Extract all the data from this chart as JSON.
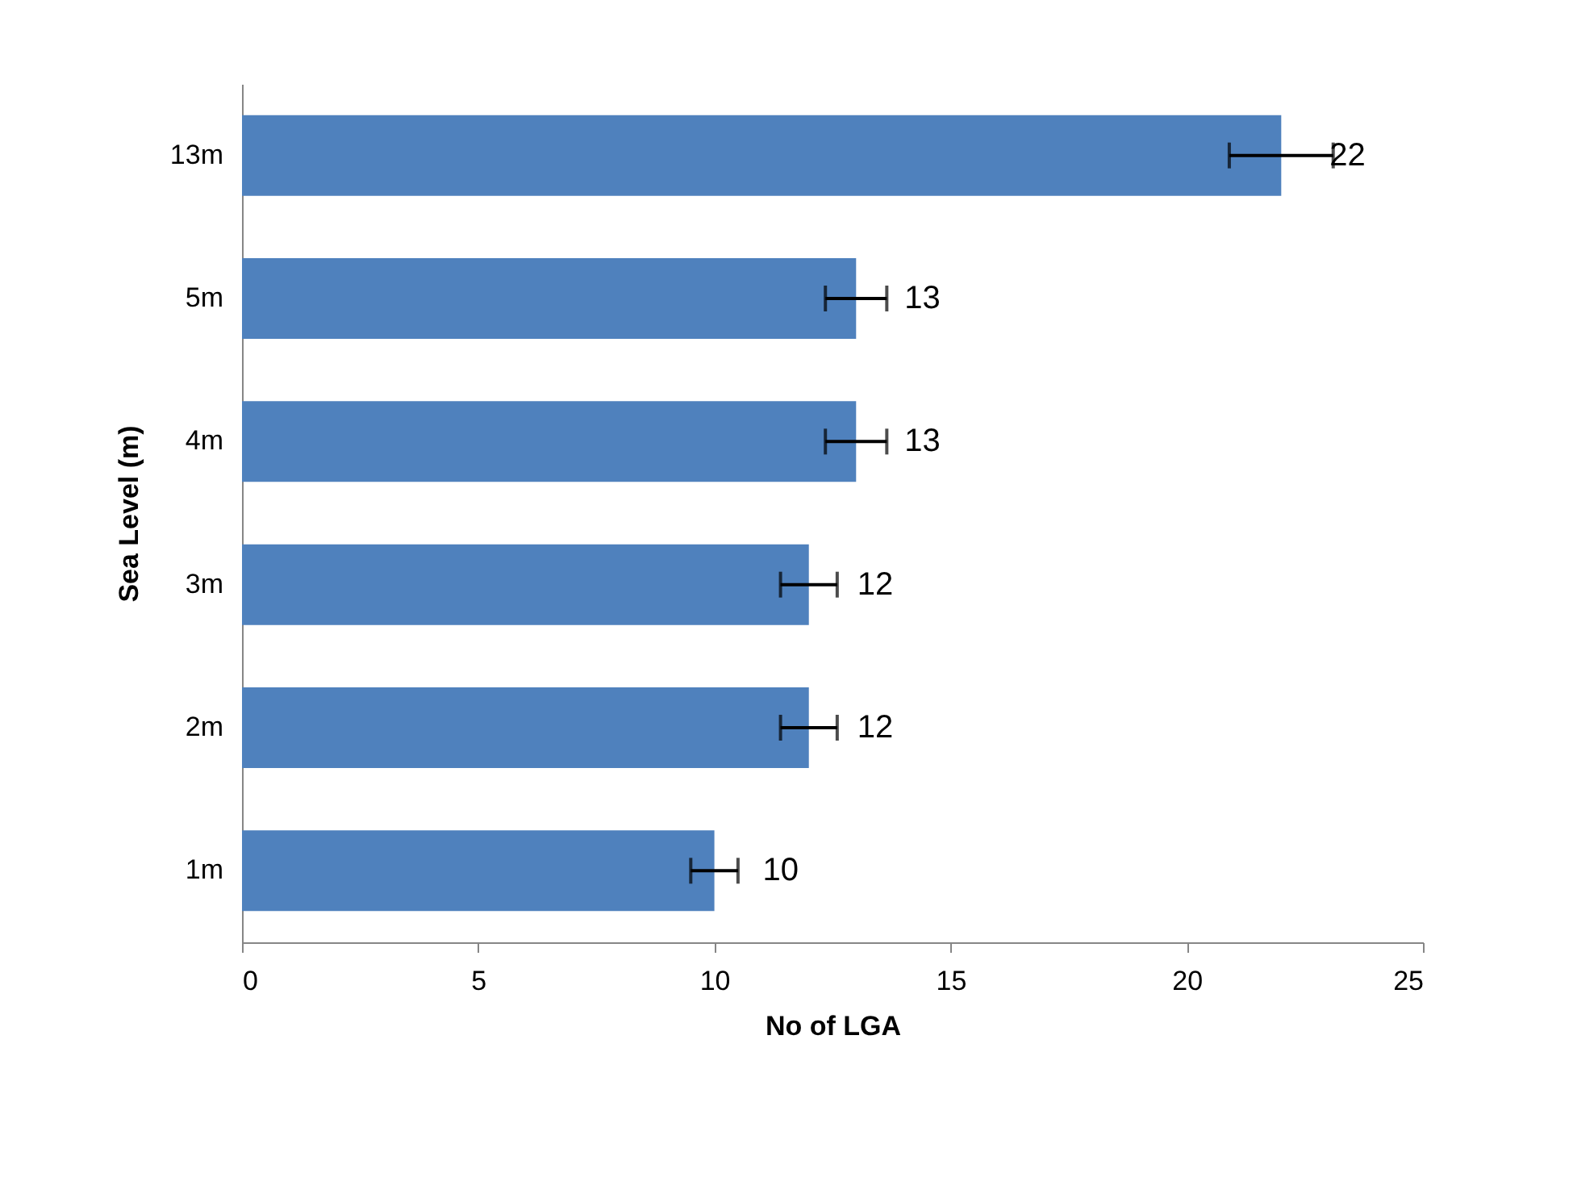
{
  "chart_data": {
    "type": "bar",
    "orientation": "horizontal",
    "xlabel": "No of LGA",
    "ylabel": "Sea Level (m)",
    "categories": [
      "13m",
      "5m",
      "4m",
      "3m",
      "2m",
      "1m"
    ],
    "values": [
      22,
      13,
      13,
      12,
      12,
      10
    ],
    "errors": [
      1.1,
      0.65,
      0.65,
      0.6,
      0.6,
      0.5
    ],
    "color": "#4f81bd",
    "data_labels": true,
    "grid": false,
    "xlim": [
      0,
      25
    ],
    "xticks": [
      0,
      5,
      10,
      15,
      20,
      25
    ]
  }
}
